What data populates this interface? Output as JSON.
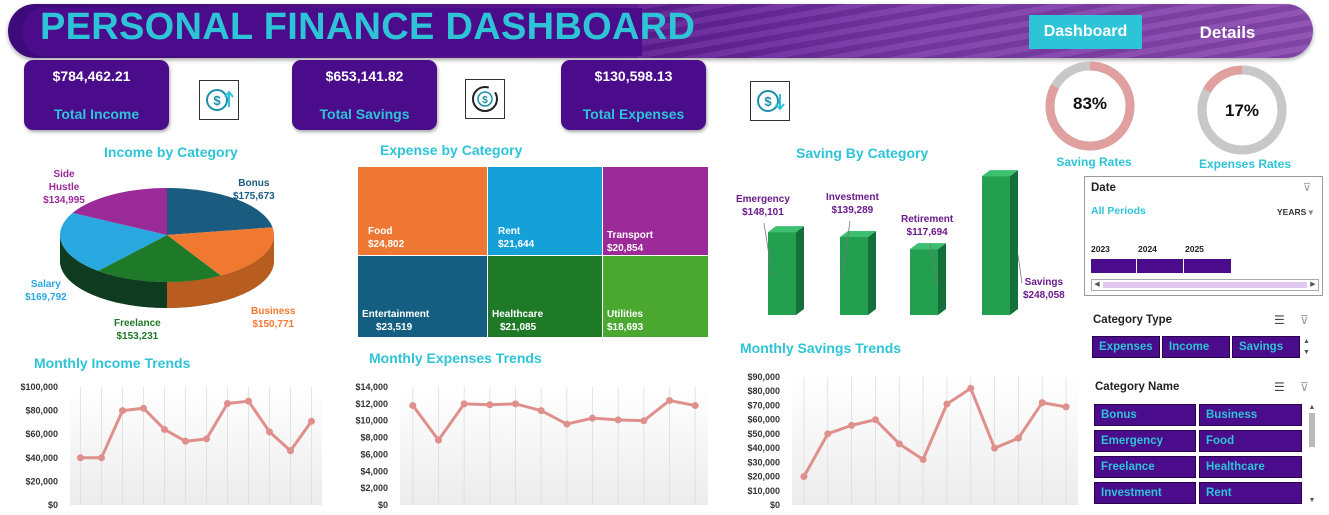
{
  "header": {
    "title": "PERSONAL FINANCE DASHBOARD",
    "tabs": [
      {
        "label": "Dashboard",
        "active": true
      },
      {
        "label": "Details",
        "active": false
      }
    ]
  },
  "kpis": [
    {
      "value": "$784,462.21",
      "label": "Total Income",
      "icon": "dollar-up-icon"
    },
    {
      "value": "$653,141.82",
      "label": "Total Savings",
      "icon": "dollar-cycle-icon"
    },
    {
      "value": "$130,598.13",
      "label": "Total Expenses",
      "icon": "dollar-down-icon"
    }
  ],
  "rates": {
    "saving": {
      "value": "83%",
      "label": "Saving Rates",
      "fraction": 0.83,
      "color": "#e0a0a0"
    },
    "expenses": {
      "value": "17%",
      "label": "Expenses Rates",
      "fraction": 0.17,
      "color": "#e0a0a0"
    }
  },
  "income_by_category": {
    "title": "Income by Category",
    "slices": [
      {
        "name": "Bonus",
        "value": "$175,673",
        "amount": 175673,
        "color": "#1a5c80"
      },
      {
        "name": "Business",
        "value": "$150,771",
        "amount": 150771,
        "color": "#f07830"
      },
      {
        "name": "Freelance",
        "value": "$153,231",
        "amount": 153231,
        "color": "#1e7a28"
      },
      {
        "name": "Salary",
        "value": "$169,792",
        "amount": 169792,
        "color": "#2aa8e0"
      },
      {
        "name": "Side Hustle",
        "value": "$134,995",
        "amount": 134995,
        "color": "#9a2a98"
      }
    ]
  },
  "expense_by_category": {
    "title": "Expense by Category",
    "tiles": [
      {
        "name": "Food",
        "value": "$24,802",
        "color": "#ee7733"
      },
      {
        "name": "Rent",
        "value": "$21,644",
        "color": "#16a0d8"
      },
      {
        "name": "Transport",
        "value": "$20,854",
        "color": "#9c2a98"
      },
      {
        "name": "Entertainment",
        "value": "$23,519",
        "color": "#145e82"
      },
      {
        "name": "Healthcare",
        "value": "$21,085",
        "color": "#1f7a28"
      },
      {
        "name": "Utilities",
        "value": "$18,693",
        "color": "#4aa830"
      }
    ]
  },
  "saving_by_category": {
    "title": "Saving By Category",
    "bars": [
      {
        "name": "Emergency",
        "value": "$148,101",
        "amount": 148101
      },
      {
        "name": "Investment",
        "value": "$139,289",
        "amount": 139289
      },
      {
        "name": "Retirement",
        "value": "$117,694",
        "amount": 117694
      },
      {
        "name": "Savings",
        "value": "$248,058",
        "amount": 248058
      }
    ],
    "color": "#22a050"
  },
  "chart_data": [
    {
      "type": "line",
      "title": "Monthly Income Trends",
      "yticks": [
        "$100,000",
        "$80,000",
        "$60,000",
        "$40,000",
        "$20,000",
        "$0"
      ],
      "ylim": [
        0,
        100000
      ],
      "series": [
        {
          "values": [
            40000,
            40000,
            80000,
            82000,
            64000,
            54000,
            56000,
            86000,
            88000,
            62000,
            46000,
            71000
          ]
        }
      ]
    },
    {
      "type": "line",
      "title": "Monthly Expenses Trends",
      "yticks": [
        "$14,000",
        "$12,000",
        "$10,000",
        "$8,000",
        "$6,000",
        "$4,000",
        "$2,000",
        "$0"
      ],
      "ylim": [
        0,
        14000
      ],
      "series": [
        {
          "values": [
            11800,
            7700,
            12000,
            11900,
            12000,
            11200,
            9600,
            10300,
            10100,
            10000,
            12400,
            11800
          ]
        }
      ]
    },
    {
      "type": "line",
      "title": "Monthly Savings Trends",
      "yticks": [
        "$90,000",
        "$80,000",
        "$70,000",
        "$60,000",
        "$50,000",
        "$40,000",
        "$30,000",
        "$20,000",
        "$10,000",
        "$0"
      ],
      "ylim": [
        0,
        90000
      ],
      "series": [
        {
          "values": [
            20000,
            50000,
            56000,
            60000,
            43000,
            32000,
            71000,
            82000,
            40000,
            47000,
            72000,
            69000
          ]
        }
      ]
    }
  ],
  "date_slicer": {
    "title": "Date",
    "selection": "All Periods",
    "level": "YEARS",
    "years": [
      "2023",
      "2024",
      "2025"
    ]
  },
  "category_type_slicer": {
    "title": "Category Type",
    "items": [
      "Expenses",
      "Income",
      "Savings"
    ]
  },
  "category_name_slicer": {
    "title": "Category Name",
    "items": [
      "Bonus",
      "Business",
      "Emergency",
      "Food",
      "Freelance",
      "Healthcare",
      "Investment",
      "Rent"
    ]
  },
  "colors": {
    "accent": "#2ec4d8",
    "purple": "#4a0c8a",
    "line": "#e0908c"
  }
}
